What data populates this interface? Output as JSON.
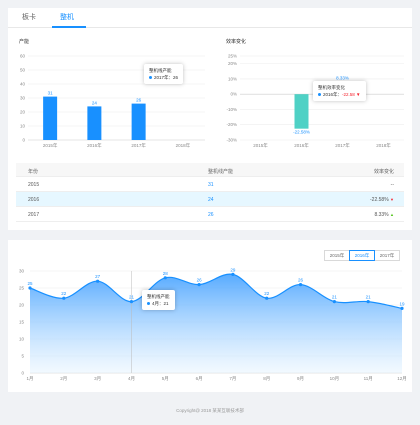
{
  "tabs": [
    {
      "label": "板卡"
    },
    {
      "label": "整机"
    }
  ],
  "output_chart": {
    "title": "产能",
    "tooltip": {
      "label": "整机线产能",
      "point": "2017年：",
      "value": "26"
    }
  },
  "change_chart": {
    "title": "效率变化",
    "tooltip": {
      "label": "整机效率变化",
      "point": "2016年：",
      "value": "-22.58"
    }
  },
  "table": {
    "headers": [
      "年份",
      "整机线产能",
      "效率变化"
    ],
    "rows": [
      {
        "year": "2015",
        "output": "31",
        "change": "--",
        "trend": ""
      },
      {
        "year": "2016",
        "output": "24",
        "change": "-22.58%",
        "trend": "▼"
      },
      {
        "year": "2017",
        "output": "26",
        "change": "8.33%",
        "trend": "▲"
      }
    ]
  },
  "monthly": {
    "years": [
      "2015年",
      "2016年",
      "2017年"
    ],
    "selected_year": "2016年",
    "tooltip": {
      "label": "整机线产能",
      "point": "4月：",
      "value": "21"
    }
  },
  "footer": "Copyright@ 2018 某某互联技术部",
  "colors": {
    "accent": "#1890ff",
    "teal": "#4fd1c5",
    "down": "#f5222d",
    "up": "#52c41a"
  },
  "chart_data": [
    {
      "type": "bar",
      "title": "产能",
      "categories": [
        "2015年",
        "2016年",
        "2017年",
        "2018年"
      ],
      "values": [
        31,
        24,
        26,
        null
      ],
      "ylim": [
        0,
        60
      ],
      "yticks": [
        0,
        10,
        20,
        30,
        40,
        50,
        60
      ],
      "grid": true
    },
    {
      "type": "bar",
      "title": "效率变化",
      "categories": [
        "2015年",
        "2016年",
        "2017年",
        "2018年"
      ],
      "values": [
        null,
        -22.58,
        8.33,
        null
      ],
      "value_labels": [
        "",
        "-22.58%",
        "8.33%",
        ""
      ],
      "ylim": [
        -30,
        25
      ],
      "yticks": [
        "25%",
        "20%",
        "10%",
        "0%",
        "-10%",
        "-20%",
        "-30%"
      ],
      "ytick_values": [
        25,
        20,
        10,
        0,
        -10,
        -20,
        -30
      ],
      "grid": true
    },
    {
      "type": "area",
      "categories": [
        "1月",
        "2月",
        "3月",
        "4月",
        "5月",
        "6月",
        "7月",
        "8月",
        "9月",
        "10月",
        "11月",
        "12月"
      ],
      "values": [
        25,
        22,
        27,
        21,
        28,
        26,
        29,
        22,
        26,
        21,
        21,
        19
      ],
      "ylim": [
        0,
        30
      ],
      "yticks": [
        0,
        5,
        10,
        15,
        20,
        25,
        30
      ],
      "grid": true
    }
  ]
}
